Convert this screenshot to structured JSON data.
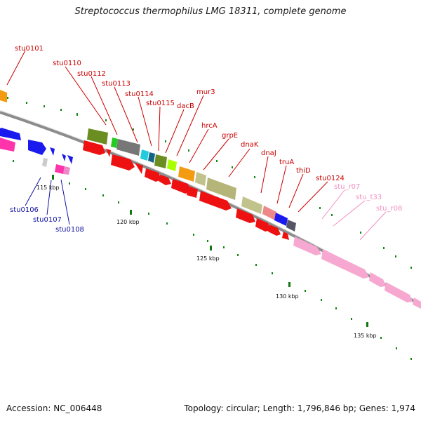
{
  "title": "Streptococcus thermophilus LMG 18311, complete genome",
  "footer": {
    "accession": "Accession: NC_006448",
    "summary": "Topology: circular; Length: 1,796,846 bp; Genes: 1,974"
  },
  "scale_labels": [
    "115 kbp",
    "120 kbp",
    "125 kbp",
    "130 kbp",
    "135 kbp"
  ],
  "gene_labels": {
    "forward": [
      {
        "name": "stu0101",
        "color": "#cc0000"
      },
      {
        "name": "stu0110",
        "color": "#cc0000"
      },
      {
        "name": "stu0112",
        "color": "#cc0000"
      },
      {
        "name": "stu0113",
        "color": "#cc0000"
      },
      {
        "name": "stu0114",
        "color": "#cc0000"
      },
      {
        "name": "stu0115",
        "color": "#cc0000"
      },
      {
        "name": "dacB",
        "color": "#cc0000"
      },
      {
        "name": "mur3",
        "color": "#cc0000"
      },
      {
        "name": "hrcA",
        "color": "#cc0000"
      },
      {
        "name": "grpE",
        "color": "#cc0000"
      },
      {
        "name": "dnaK",
        "color": "#cc0000"
      },
      {
        "name": "dnaJ",
        "color": "#cc0000"
      },
      {
        "name": "truA",
        "color": "#cc0000"
      },
      {
        "name": "thiD",
        "color": "#cc0000"
      },
      {
        "name": "stu0124",
        "color": "#cc0000"
      },
      {
        "name": "stu_r07",
        "color": "#f090c0"
      },
      {
        "name": "stu_t33",
        "color": "#f090c0"
      },
      {
        "name": "stu_r08",
        "color": "#f090c0"
      }
    ],
    "reverse": [
      {
        "name": "stu0106",
        "color": "#1010a0"
      },
      {
        "name": "stu0107",
        "color": "#1010a0"
      },
      {
        "name": "stu0108",
        "color": "#1010a0"
      }
    ]
  },
  "colors": {
    "forward_cds": "#ee1111",
    "reverse_cds": "#1111dd",
    "rrna": "#f4a6cc",
    "backbone": "#888888",
    "tick": "#118811"
  }
}
